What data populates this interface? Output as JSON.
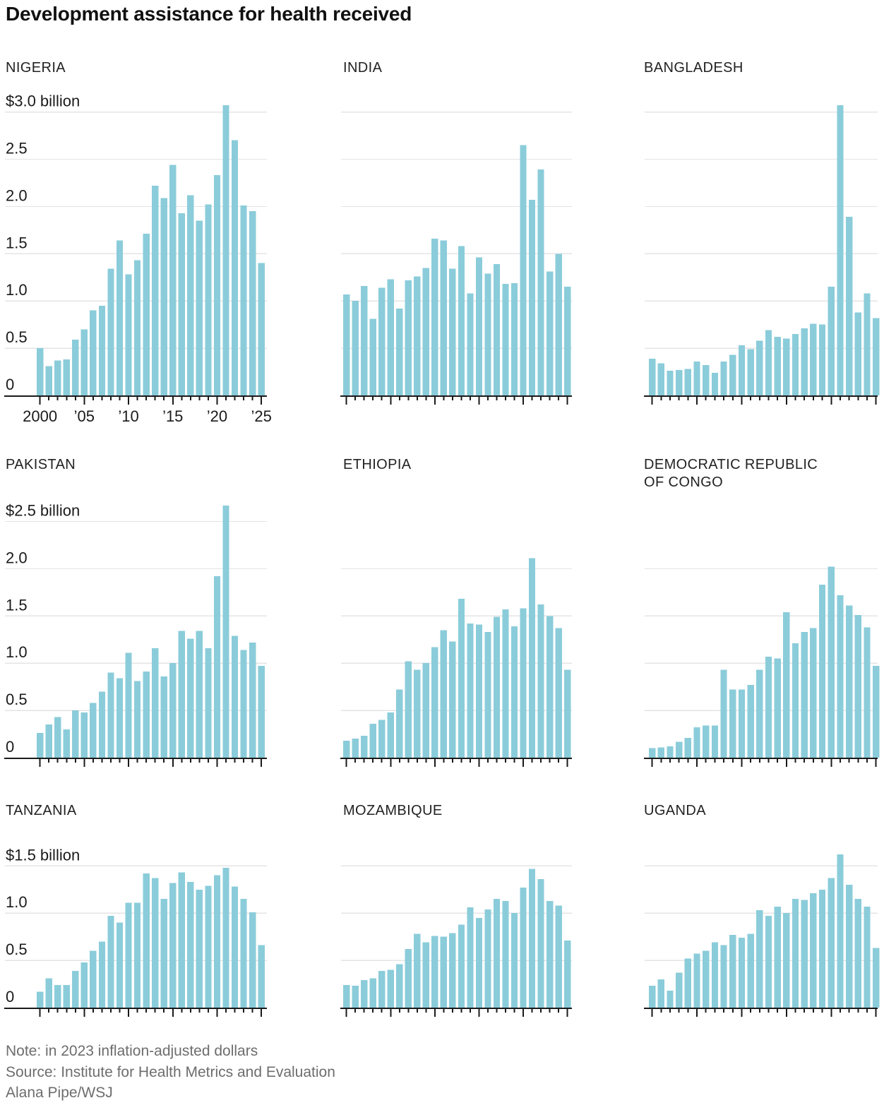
{
  "title": "Development assistance for health received",
  "footer": {
    "note": "Note: in 2023 inflation-adjusted dollars",
    "source": "Source: Institute for Health Metrics and Evaluation",
    "credit": "Alana Pipe/WSJ"
  },
  "colors": {
    "bar": "#8bccda",
    "grid": "#e4e4e4",
    "axis": "#1a1a1a",
    "text": "#1a1a1a",
    "muted": "#6d6d6d"
  },
  "years": [
    2000,
    2001,
    2002,
    2003,
    2004,
    2005,
    2006,
    2007,
    2008,
    2009,
    2010,
    2011,
    2012,
    2013,
    2014,
    2015,
    2016,
    2017,
    2018,
    2019,
    2020,
    2021,
    2022,
    2023,
    2024,
    2025
  ],
  "x_tick_labels": [
    {
      "index": 0,
      "label": "2000"
    },
    {
      "index": 5,
      "label": "’05"
    },
    {
      "index": 10,
      "label": "’10"
    },
    {
      "index": 15,
      "label": "’15"
    },
    {
      "index": 20,
      "label": "’20"
    },
    {
      "index": 25,
      "label": "’25"
    }
  ],
  "chart_data": [
    {
      "type": "bar",
      "country": "NIGERIA",
      "y_axis_label": "$3.0 billion",
      "y_tick_labels": [
        "2.5",
        "2.0",
        "1.5",
        "1.0",
        "0.5",
        "0"
      ],
      "grid_max": 3.0,
      "grid_step": 0.5,
      "show_x_labels": true,
      "ylim": [
        0,
        3.0
      ],
      "values": [
        0.5,
        0.31,
        0.37,
        0.38,
        0.59,
        0.7,
        0.9,
        0.95,
        1.34,
        1.64,
        1.28,
        1.43,
        1.71,
        2.22,
        2.09,
        2.44,
        1.93,
        2.12,
        1.85,
        2.02,
        2.33,
        3.07,
        2.7,
        2.01,
        1.95,
        1.4
      ]
    },
    {
      "type": "bar",
      "country": "INDIA",
      "grid_max": 3.0,
      "grid_step": 0.5,
      "show_x_labels": false,
      "ylim": [
        0,
        3.0
      ],
      "values": [
        1.07,
        1.0,
        1.16,
        0.81,
        1.14,
        1.23,
        0.92,
        1.22,
        1.26,
        1.35,
        1.66,
        1.64,
        1.34,
        1.58,
        1.08,
        1.46,
        1.29,
        1.39,
        1.18,
        1.19,
        2.65,
        2.07,
        2.39,
        1.31,
        1.5,
        1.15
      ]
    },
    {
      "type": "bar",
      "country": "BANGLADESH",
      "grid_max": 3.0,
      "grid_step": 0.5,
      "show_x_labels": false,
      "ylim": [
        0,
        3.0
      ],
      "values": [
        0.39,
        0.34,
        0.26,
        0.27,
        0.28,
        0.36,
        0.32,
        0.24,
        0.36,
        0.43,
        0.53,
        0.49,
        0.58,
        0.69,
        0.62,
        0.6,
        0.65,
        0.71,
        0.76,
        0.75,
        1.15,
        3.07,
        1.89,
        0.88,
        1.08,
        0.82
      ]
    },
    {
      "type": "bar",
      "country": "PAKISTAN",
      "y_axis_label": "$2.5 billion",
      "y_tick_labels": [
        "2.0",
        "1.5",
        "1.0",
        "0.5",
        "0"
      ],
      "grid_max": 2.5,
      "grid_step": 0.5,
      "show_x_labels": false,
      "ylim": [
        0,
        2.5
      ],
      "values": [
        0.26,
        0.35,
        0.43,
        0.3,
        0.5,
        0.48,
        0.58,
        0.7,
        0.9,
        0.84,
        1.11,
        0.81,
        0.91,
        1.16,
        0.86,
        1.0,
        1.34,
        1.26,
        1.34,
        1.16,
        1.92,
        2.67,
        1.29,
        1.14,
        1.22,
        0.97
      ]
    },
    {
      "type": "bar",
      "country": "ETHIOPIA",
      "grid_max": 2.0,
      "grid_step": 0.5,
      "show_x_labels": false,
      "ylim": [
        0,
        2.5
      ],
      "values": [
        0.18,
        0.2,
        0.23,
        0.36,
        0.4,
        0.48,
        0.72,
        1.02,
        0.93,
        1.0,
        1.17,
        1.35,
        1.23,
        1.68,
        1.42,
        1.41,
        1.33,
        1.49,
        1.57,
        1.39,
        1.58,
        2.11,
        1.62,
        1.5,
        1.37,
        0.93
      ]
    },
    {
      "type": "bar",
      "country": "DEMOCRATIC REPUBLIC\nOF CONGO",
      "grid_max": 2.0,
      "grid_step": 0.5,
      "show_x_labels": false,
      "ylim": [
        0,
        2.5
      ],
      "values": [
        0.1,
        0.11,
        0.12,
        0.17,
        0.21,
        0.32,
        0.34,
        0.34,
        0.93,
        0.72,
        0.72,
        0.77,
        0.93,
        1.07,
        1.05,
        1.54,
        1.21,
        1.33,
        1.37,
        1.83,
        2.02,
        1.72,
        1.61,
        1.51,
        1.38,
        0.97
      ]
    },
    {
      "type": "bar",
      "country": "TANZANIA",
      "y_axis_label": "$1.5 billion",
      "y_tick_labels": [
        "1.0",
        "0.5",
        "0"
      ],
      "grid_max": 1.5,
      "grid_step": 0.5,
      "show_x_labels": false,
      "ylim": [
        0,
        1.5
      ],
      "values": [
        0.17,
        0.31,
        0.24,
        0.24,
        0.39,
        0.48,
        0.6,
        0.7,
        0.97,
        0.9,
        1.11,
        1.11,
        1.42,
        1.37,
        1.15,
        1.32,
        1.43,
        1.33,
        1.25,
        1.29,
        1.4,
        1.48,
        1.28,
        1.15,
        1.01,
        0.66
      ]
    },
    {
      "type": "bar",
      "country": "MOZAMBIQUE",
      "grid_max": 1.5,
      "grid_step": 0.5,
      "show_x_labels": false,
      "ylim": [
        0,
        1.5
      ],
      "values": [
        0.24,
        0.23,
        0.29,
        0.31,
        0.39,
        0.4,
        0.46,
        0.62,
        0.78,
        0.69,
        0.76,
        0.75,
        0.79,
        0.88,
        1.06,
        0.95,
        1.04,
        1.15,
        1.13,
        1.0,
        1.27,
        1.47,
        1.36,
        1.13,
        1.08,
        0.71
      ]
    },
    {
      "type": "bar",
      "country": "UGANDA",
      "grid_max": 1.5,
      "grid_step": 0.5,
      "show_x_labels": false,
      "ylim": [
        0,
        1.5
      ],
      "values": [
        0.23,
        0.3,
        0.18,
        0.37,
        0.52,
        0.57,
        0.6,
        0.69,
        0.66,
        0.77,
        0.74,
        0.78,
        1.03,
        0.97,
        1.07,
        1.0,
        1.15,
        1.14,
        1.21,
        1.25,
        1.37,
        1.62,
        1.3,
        1.15,
        1.07,
        0.63
      ]
    }
  ]
}
